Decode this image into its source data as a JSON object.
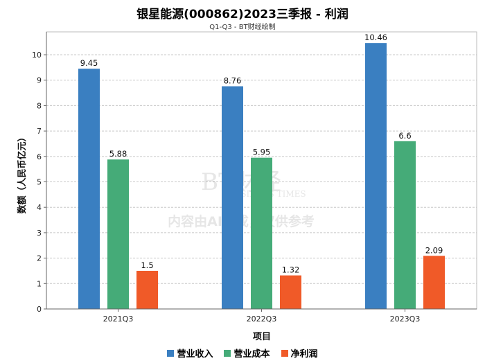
{
  "chart_data": {
    "type": "bar",
    "title": "银星能源(000862)2023三季报 - 利润",
    "subtitle": "Q1-Q3 - BT财经绘制",
    "xlabel": "项目",
    "ylabel": "数额（人民币亿元）",
    "categories": [
      "2021Q3",
      "2022Q3",
      "2023Q3"
    ],
    "ylim": [
      0,
      10.9
    ],
    "yticks": [
      0,
      1,
      2,
      3,
      4,
      5,
      6,
      7,
      8,
      9,
      10
    ],
    "grid": true,
    "legend_position": "bottom",
    "series": [
      {
        "name": "营业收入",
        "values": [
          9.45,
          8.76,
          10.46
        ],
        "color": "#3a7fc1"
      },
      {
        "name": "营业成本",
        "values": [
          5.88,
          5.95,
          6.6
        ],
        "color": "#45ab78"
      },
      {
        "name": "净利润",
        "values": [
          1.5,
          1.32,
          2.09
        ],
        "color": "#f05a28"
      }
    ]
  },
  "watermark": {
    "brand": "BT财经",
    "brand_en": "BUSINESS TIMES",
    "note": "内容由AI生成，仅供参考"
  }
}
